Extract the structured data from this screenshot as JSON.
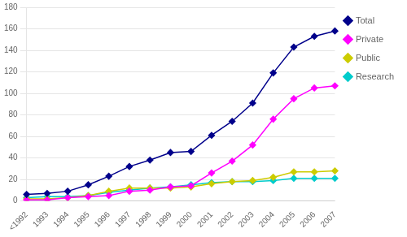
{
  "chart_data": {
    "type": "line",
    "categories": [
      "<1992",
      "1993",
      "1994",
      "1995",
      "1996",
      "1997",
      "1998",
      "1999",
      "2000",
      "2001",
      "2002",
      "2003",
      "2004",
      "2005",
      "2006",
      "2007"
    ],
    "series": [
      {
        "name": "Total",
        "color": "#00008B",
        "values": [
          6,
          7,
          9,
          15,
          23,
          32,
          38,
          45,
          46,
          61,
          74,
          91,
          119,
          143,
          153,
          158
        ]
      },
      {
        "name": "Private",
        "color": "#FF00FF",
        "values": [
          1,
          1,
          3,
          4,
          5,
          9,
          10,
          13,
          14,
          26,
          37,
          52,
          76,
          95,
          105,
          107
        ]
      },
      {
        "name": "Public",
        "color": "#CCCC00",
        "values": [
          2,
          2,
          3,
          5,
          9,
          12,
          12,
          12,
          13,
          16,
          18,
          19,
          22,
          27,
          27,
          28
        ]
      },
      {
        "name": "Research",
        "color": "#00CCCC",
        "values": [
          3,
          4,
          4,
          5,
          8,
          10,
          12,
          13,
          15,
          17,
          18,
          18,
          19,
          21,
          21,
          21
        ]
      }
    ],
    "ylim": [
      0,
      180
    ],
    "yticks": [
      0,
      20,
      40,
      60,
      80,
      100,
      120,
      140,
      160,
      180
    ],
    "grid": true,
    "legend": "right",
    "marker": "diamond"
  }
}
